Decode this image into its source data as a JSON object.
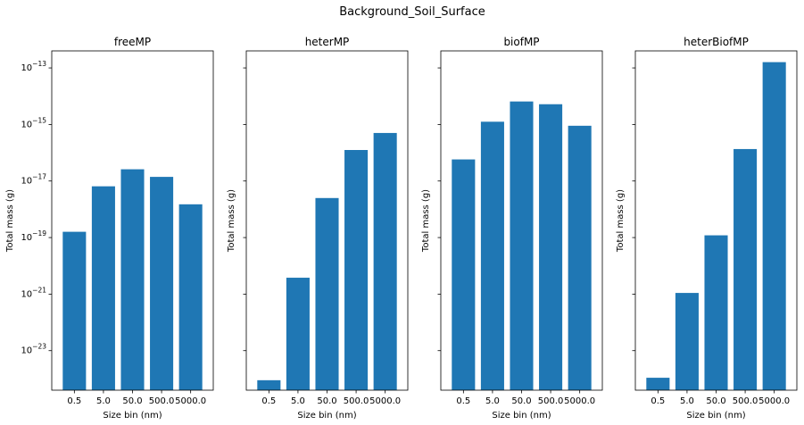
{
  "figure": {
    "title": "Background_Soil_Surface"
  },
  "chart_data": [
    {
      "type": "bar",
      "title": "freeMP",
      "xlabel": "Size bin (nm)",
      "ylabel": "Total mass (g)",
      "yscale": "log",
      "ylim": [
        4e-25,
        4e-13
      ],
      "yticks": [
        "10^-23",
        "10^-21",
        "10^-19",
        "10^-17",
        "10^-15",
        "10^-13"
      ],
      "show_ytick_labels": true,
      "categories": [
        "0.5",
        "5.0",
        "50.0",
        "500.0",
        "5000.0"
      ],
      "values": [
        1.6e-19,
        6.5e-18,
        2.6e-17,
        1.4e-17,
        1.5e-18
      ],
      "color": "#1f77b4"
    },
    {
      "type": "bar",
      "title": "heterMP",
      "xlabel": "Size bin (nm)",
      "ylabel": "Total mass (g)",
      "yscale": "log",
      "ylim": [
        4e-25,
        4e-13
      ],
      "yticks": [
        "10^-23",
        "10^-21",
        "10^-19",
        "10^-17",
        "10^-15",
        "10^-13"
      ],
      "show_ytick_labels": false,
      "categories": [
        "0.5",
        "5.0",
        "50.0",
        "500.0",
        "5000.0"
      ],
      "values": [
        9e-25,
        3.8e-21,
        2.5e-18,
        1.25e-16,
        5e-16
      ],
      "color": "#1f77b4"
    },
    {
      "type": "bar",
      "title": "biofMP",
      "xlabel": "Size bin (nm)",
      "ylabel": "Total mass (g)",
      "yscale": "log",
      "ylim": [
        4e-25,
        4e-13
      ],
      "yticks": [
        "10^-23",
        "10^-21",
        "10^-19",
        "10^-17",
        "10^-15",
        "10^-13"
      ],
      "show_ytick_labels": false,
      "categories": [
        "0.5",
        "5.0",
        "50.0",
        "500.0",
        "5000.0"
      ],
      "values": [
        5.8e-17,
        1.25e-15,
        6.5e-15,
        5.2e-15,
        9e-16
      ],
      "color": "#1f77b4"
    },
    {
      "type": "bar",
      "title": "heterBiofMP",
      "xlabel": "Size bin (nm)",
      "ylabel": "Total mass (g)",
      "yscale": "log",
      "ylim": [
        4e-25,
        4e-13
      ],
      "yticks": [
        "10^-23",
        "10^-21",
        "10^-19",
        "10^-17",
        "10^-15",
        "10^-13"
      ],
      "show_ytick_labels": false,
      "categories": [
        "0.5",
        "5.0",
        "50.0",
        "500.0",
        "5000.0"
      ],
      "values": [
        1.1e-24,
        1.1e-21,
        1.2e-19,
        1.35e-16,
        1.6e-13
      ],
      "color": "#1f77b4"
    }
  ]
}
